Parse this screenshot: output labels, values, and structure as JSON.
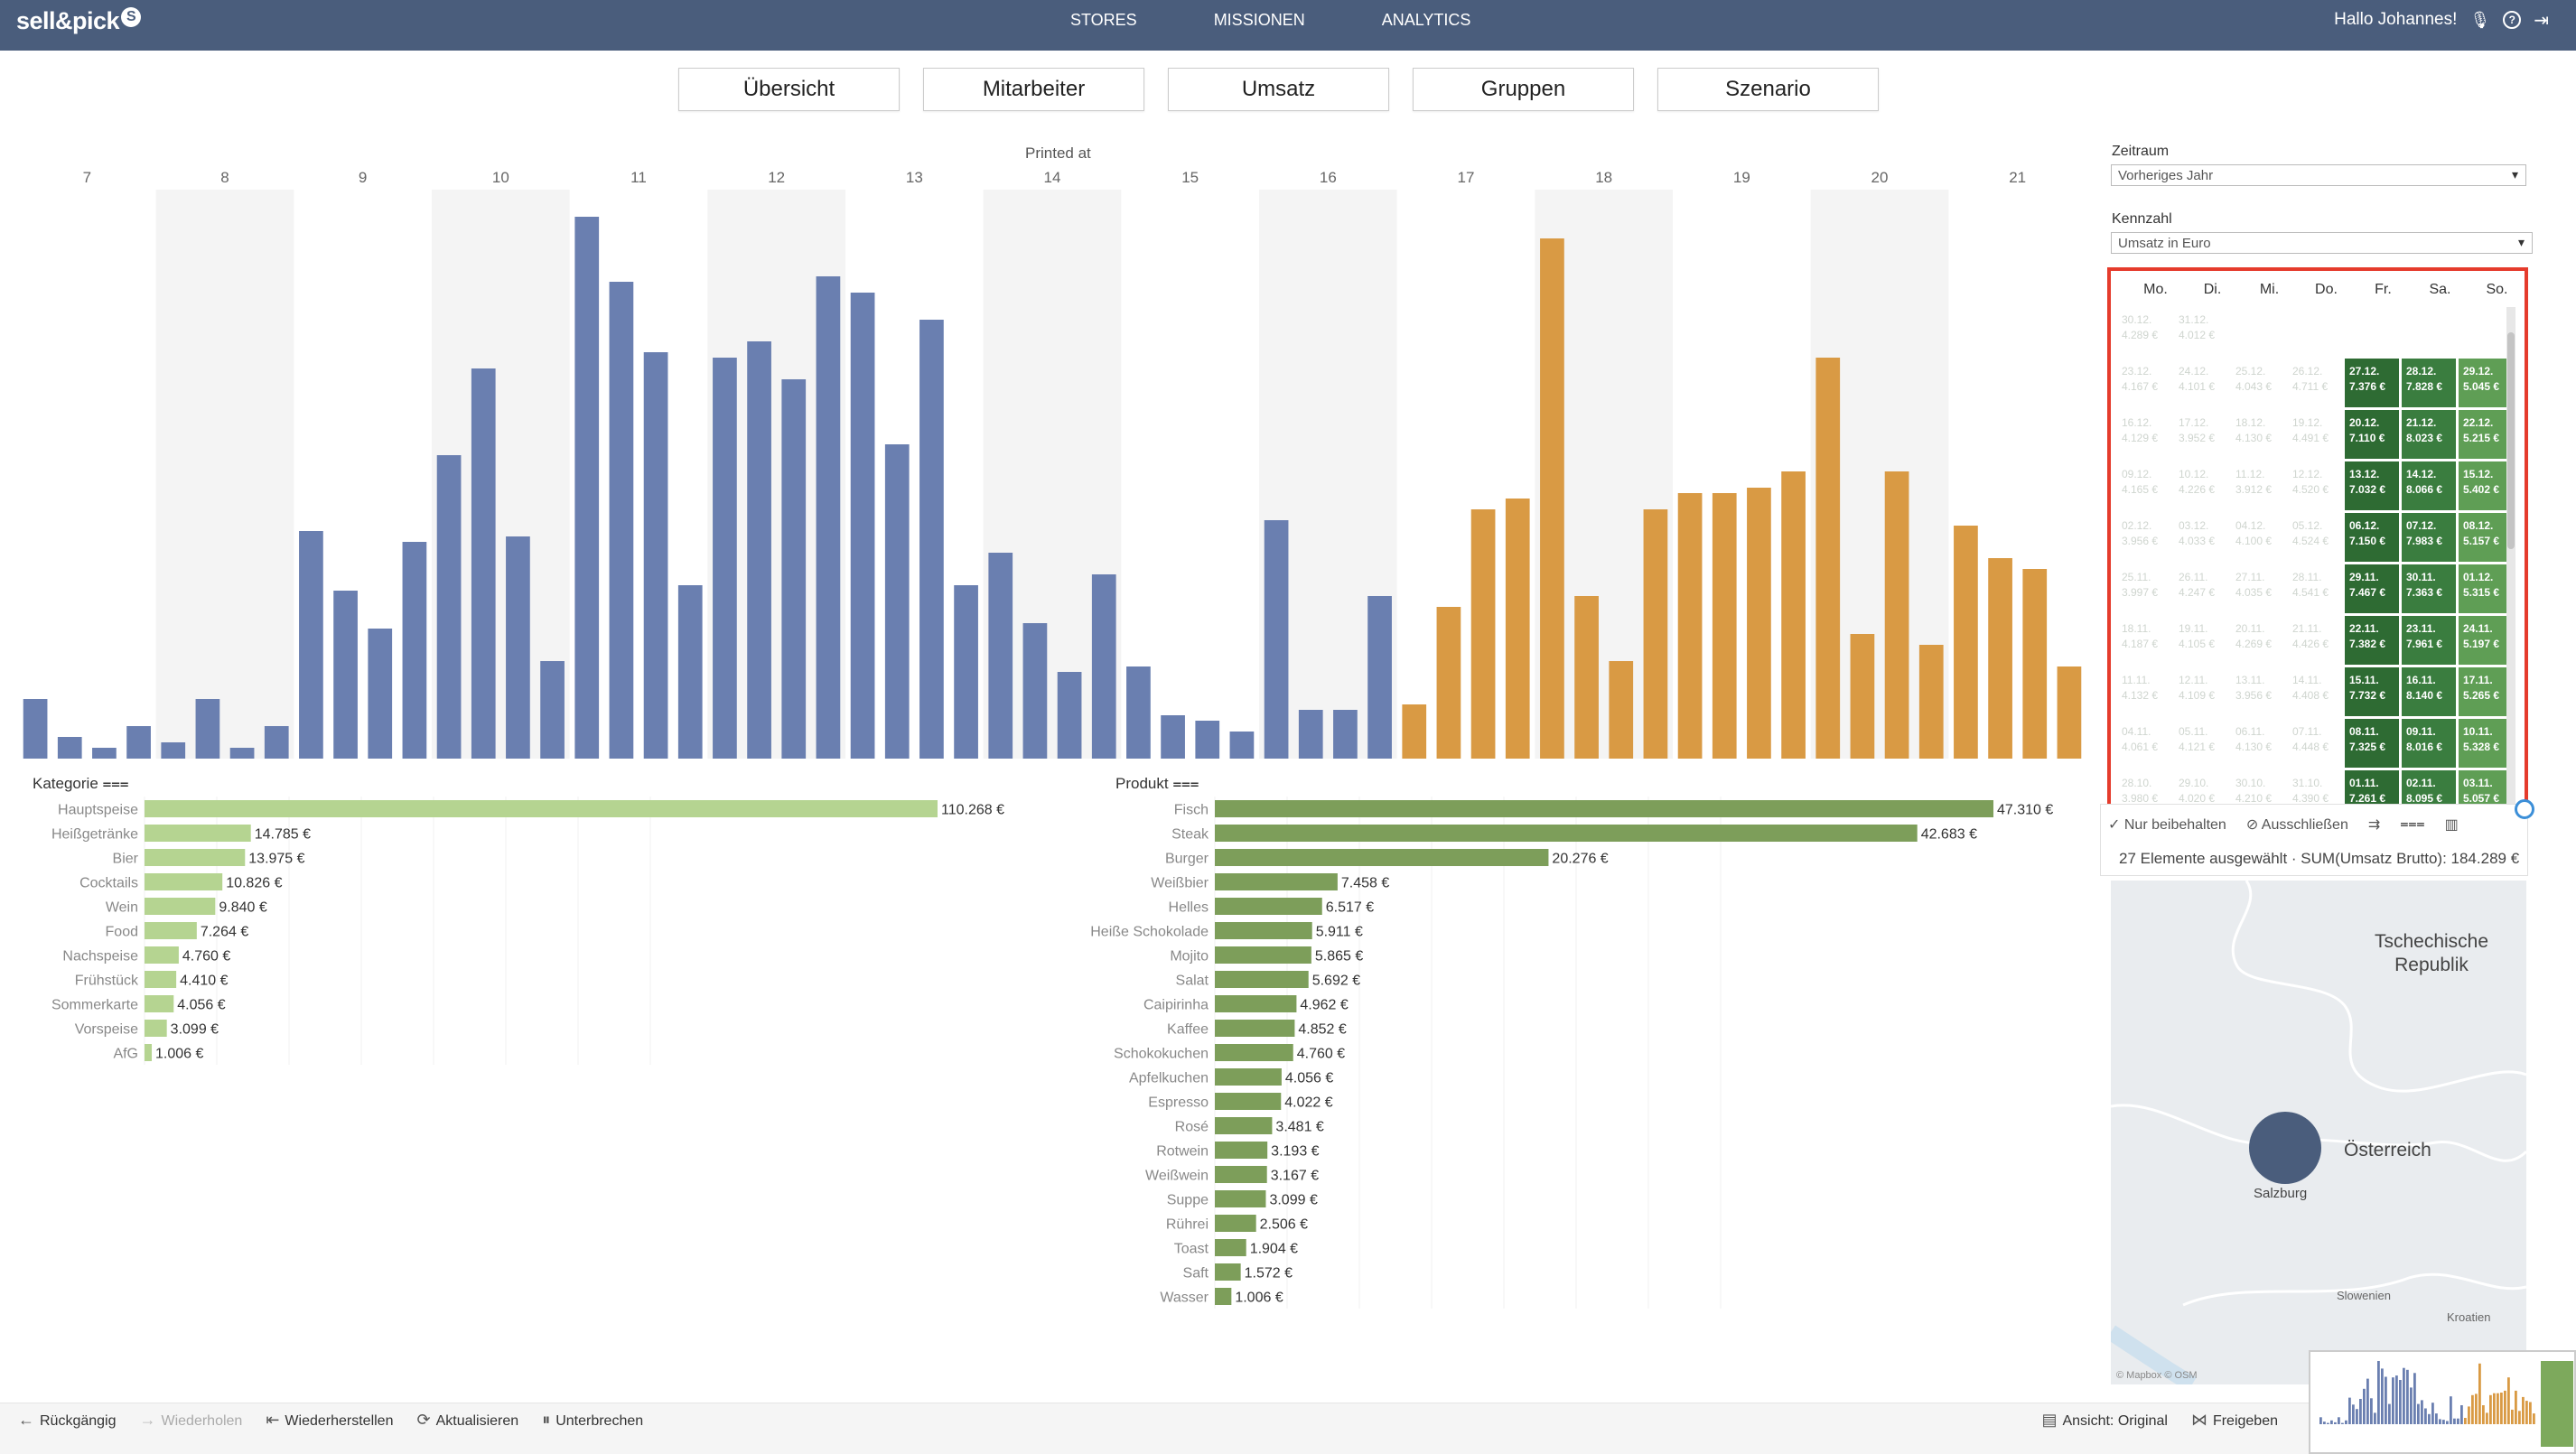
{
  "app": {
    "logo_text": "sell&pick",
    "logo_badge": "S"
  },
  "nav": {
    "items": [
      "STORES",
      "MISSIONEN",
      "ANALYTICS"
    ]
  },
  "user": {
    "greeting": "Hallo Johannes!"
  },
  "tabs": [
    "Übersicht",
    "Mitarbeiter",
    "Umsatz",
    "Gruppen",
    "Szenario"
  ],
  "colors": {
    "header": "#4a5d7c",
    "blue_bar": "#6a7fb0",
    "orange_bar": "#d99a44",
    "light_green": "#b5d491",
    "dark_green": "#7d9e5a",
    "selection": "#e53b2c"
  },
  "chart_data": [
    {
      "type": "bar",
      "title": "Printed at",
      "x_ticks": [
        "7",
        "8",
        "9",
        "10",
        "11",
        "12",
        "13",
        "14",
        "15",
        "16",
        "17",
        "18",
        "19",
        "20",
        "21"
      ],
      "band_ticks": [
        "8",
        "10",
        "12",
        "14",
        "16",
        "18",
        "20"
      ],
      "ylim": [
        0,
        100
      ],
      "values": [
        11,
        4,
        2,
        6,
        3,
        11,
        2,
        6,
        42,
        31,
        24,
        40,
        56,
        72,
        41,
        18,
        100,
        88,
        75,
        32,
        74,
        77,
        70,
        89,
        86,
        58,
        81,
        32,
        38,
        25,
        16,
        34,
        17,
        8,
        7,
        5,
        44,
        9,
        9,
        30,
        10,
        28,
        46,
        48,
        96,
        30,
        18,
        46,
        49,
        49,
        50,
        53,
        74,
        23,
        53,
        21,
        43,
        37,
        35,
        17
      ],
      "series_colors": [
        "#6a7fb0",
        "#6a7fb0",
        "#6a7fb0",
        "#6a7fb0",
        "#6a7fb0",
        "#6a7fb0",
        "#6a7fb0",
        "#6a7fb0",
        "#6a7fb0",
        "#6a7fb0",
        "#6a7fb0",
        "#6a7fb0",
        "#6a7fb0",
        "#6a7fb0",
        "#6a7fb0",
        "#6a7fb0",
        "#6a7fb0",
        "#6a7fb0",
        "#6a7fb0",
        "#6a7fb0",
        "#6a7fb0",
        "#6a7fb0",
        "#6a7fb0",
        "#6a7fb0",
        "#6a7fb0",
        "#6a7fb0",
        "#6a7fb0",
        "#6a7fb0",
        "#6a7fb0",
        "#6a7fb0",
        "#6a7fb0",
        "#6a7fb0",
        "#6a7fb0",
        "#6a7fb0",
        "#6a7fb0",
        "#6a7fb0",
        "#6a7fb0",
        "#6a7fb0",
        "#6a7fb0",
        "#6a7fb0",
        "#d99a44",
        "#d99a44",
        "#d99a44",
        "#d99a44",
        "#d99a44",
        "#d99a44",
        "#d99a44",
        "#d99a44",
        "#d99a44",
        "#d99a44",
        "#d99a44",
        "#d99a44",
        "#d99a44",
        "#d99a44",
        "#d99a44",
        "#d99a44",
        "#d99a44",
        "#d99a44",
        "#d99a44",
        "#d99a44"
      ]
    },
    {
      "type": "bar",
      "orientation": "horizontal",
      "header": "Kategorie",
      "categories": [
        "Hauptspeise",
        "Heißgetränke",
        "Bier",
        "Cocktails",
        "Wein",
        "Food",
        "Nachspeise",
        "Frühstück",
        "Sommerkarte",
        "Vorspeise",
        "AfG"
      ],
      "values": [
        110268,
        14785,
        13975,
        10826,
        9840,
        7264,
        4760,
        4410,
        4056,
        3099,
        1006
      ],
      "labels": [
        "110.268 €",
        "14.785 €",
        "13.975 €",
        "10.826 €",
        "9.840 €",
        "7.264 €",
        "4.760 €",
        "4.410 €",
        "4.056 €",
        "3.099 €",
        "1.006 €"
      ]
    },
    {
      "type": "bar",
      "orientation": "horizontal",
      "header": "Produkt",
      "categories": [
        "Fisch",
        "Steak",
        "Burger",
        "Weißbier",
        "Helles",
        "Heiße Schokolade",
        "Mojito",
        "Salat",
        "Caipirinha",
        "Kaffee",
        "Schokokuchen",
        "Apfelkuchen",
        "Espresso",
        "Rosé",
        "Rotwein",
        "Weißwein",
        "Suppe",
        "Rührei",
        "Toast",
        "Saft",
        "Wasser"
      ],
      "values": [
        47310,
        42683,
        20276,
        7458,
        6517,
        5911,
        5865,
        5692,
        4962,
        4852,
        4760,
        4056,
        4022,
        3481,
        3193,
        3167,
        3099,
        2506,
        1904,
        1572,
        1006
      ],
      "labels": [
        "47.310 €",
        "42.683 €",
        "20.276 €",
        "7.458 €",
        "6.517 €",
        "5.911 €",
        "5.865 €",
        "5.692 €",
        "4.962 €",
        "4.852 €",
        "4.760 €",
        "4.056 €",
        "4.022 €",
        "3.481 €",
        "3.193 €",
        "3.167 €",
        "3.099 €",
        "2.506 €",
        "1.904 €",
        "1.572 €",
        "1.006 €"
      ]
    }
  ],
  "filters": {
    "zeitraum_label": "Zeitraum",
    "zeitraum_value": "Vorheriges Jahr",
    "kennzahl_label": "Kennzahl",
    "kennzahl_value": "Umsatz in Euro"
  },
  "calendar": {
    "weekdays": [
      "Mo.",
      "Di.",
      "Mi.",
      "Do.",
      "Fr.",
      "Sa.",
      "So."
    ],
    "rows": [
      [
        {
          "d": "30.12.",
          "v": "4.289 €"
        },
        {
          "d": "31.12.",
          "v": "4.012 €"
        },
        null,
        null,
        null,
        null,
        null
      ],
      [
        {
          "d": "23.12.",
          "v": "4.167 €"
        },
        {
          "d": "24.12.",
          "v": "4.101 €"
        },
        {
          "d": "25.12.",
          "v": "4.043 €"
        },
        {
          "d": "26.12.",
          "v": "4.711 €"
        },
        {
          "d": "27.12.",
          "v": "7.376 €",
          "s": 1
        },
        {
          "d": "28.12.",
          "v": "7.828 €",
          "s": 1
        },
        {
          "d": "29.12.",
          "v": "5.045 €",
          "s": 1
        }
      ],
      [
        {
          "d": "16.12.",
          "v": "4.129 €"
        },
        {
          "d": "17.12.",
          "v": "3.952 €"
        },
        {
          "d": "18.12.",
          "v": "4.130 €"
        },
        {
          "d": "19.12.",
          "v": "4.491 €"
        },
        {
          "d": "20.12.",
          "v": "7.110 €",
          "s": 1
        },
        {
          "d": "21.12.",
          "v": "8.023 €",
          "s": 1
        },
        {
          "d": "22.12.",
          "v": "5.215 €",
          "s": 1
        }
      ],
      [
        {
          "d": "09.12.",
          "v": "4.165 €"
        },
        {
          "d": "10.12.",
          "v": "4.226 €"
        },
        {
          "d": "11.12.",
          "v": "3.912 €"
        },
        {
          "d": "12.12.",
          "v": "4.520 €"
        },
        {
          "d": "13.12.",
          "v": "7.032 €",
          "s": 1
        },
        {
          "d": "14.12.",
          "v": "8.066 €",
          "s": 1
        },
        {
          "d": "15.12.",
          "v": "5.402 €",
          "s": 1
        }
      ],
      [
        {
          "d": "02.12.",
          "v": "3.956 €"
        },
        {
          "d": "03.12.",
          "v": "4.033 €"
        },
        {
          "d": "04.12.",
          "v": "4.100 €"
        },
        {
          "d": "05.12.",
          "v": "4.524 €"
        },
        {
          "d": "06.12.",
          "v": "7.150 €",
          "s": 1
        },
        {
          "d": "07.12.",
          "v": "7.983 €",
          "s": 1
        },
        {
          "d": "08.12.",
          "v": "5.157 €",
          "s": 1
        }
      ],
      [
        {
          "d": "25.11.",
          "v": "3.997 €"
        },
        {
          "d": "26.11.",
          "v": "4.247 €"
        },
        {
          "d": "27.11.",
          "v": "4.035 €"
        },
        {
          "d": "28.11.",
          "v": "4.541 €"
        },
        {
          "d": "29.11.",
          "v": "7.467 €",
          "s": 1
        },
        {
          "d": "30.11.",
          "v": "7.363 €",
          "s": 1
        },
        {
          "d": "01.12.",
          "v": "5.315 €",
          "s": 1
        }
      ],
      [
        {
          "d": "18.11.",
          "v": "4.187 €"
        },
        {
          "d": "19.11.",
          "v": "4.105 €"
        },
        {
          "d": "20.11.",
          "v": "4.269 €"
        },
        {
          "d": "21.11.",
          "v": "4.426 €"
        },
        {
          "d": "22.11.",
          "v": "7.382 €",
          "s": 1
        },
        {
          "d": "23.11.",
          "v": "7.961 €",
          "s": 1
        },
        {
          "d": "24.11.",
          "v": "5.197 €",
          "s": 1
        }
      ],
      [
        {
          "d": "11.11.",
          "v": "4.132 €"
        },
        {
          "d": "12.11.",
          "v": "4.109 €"
        },
        {
          "d": "13.11.",
          "v": "3.956 €"
        },
        {
          "d": "14.11.",
          "v": "4.408 €"
        },
        {
          "d": "15.11.",
          "v": "7.732 €",
          "s": 1
        },
        {
          "d": "16.11.",
          "v": "8.140 €",
          "s": 1
        },
        {
          "d": "17.11.",
          "v": "5.265 €",
          "s": 1
        }
      ],
      [
        {
          "d": "04.11.",
          "v": "4.061 €"
        },
        {
          "d": "05.11.",
          "v": "4.121 €"
        },
        {
          "d": "06.11.",
          "v": "4.130 €"
        },
        {
          "d": "07.11.",
          "v": "4.448 €"
        },
        {
          "d": "08.11.",
          "v": "7.325 €",
          "s": 1
        },
        {
          "d": "09.11.",
          "v": "8.016 €",
          "s": 1
        },
        {
          "d": "10.11.",
          "v": "5.328 €",
          "s": 1
        }
      ],
      [
        {
          "d": "28.10.",
          "v": "3.980 €"
        },
        {
          "d": "29.10.",
          "v": "4.020 €"
        },
        {
          "d": "30.10.",
          "v": "4.210 €"
        },
        {
          "d": "31.10.",
          "v": "4.390 €"
        },
        {
          "d": "01.11.",
          "v": "7.261 €",
          "s": 1
        },
        {
          "d": "02.11.",
          "v": "8.095 €",
          "s": 1
        },
        {
          "d": "03.11.",
          "v": "5.057 €",
          "s": 1
        }
      ]
    ]
  },
  "tooltip": {
    "keep_only": "Nur beibehalten",
    "exclude": "Ausschließen",
    "summary": "27 Elemente ausgewählt · SUM(Umsatz Brutto): 184.289 €"
  },
  "map": {
    "labels": {
      "czech": "Tschechische Republik",
      "austria": "Österreich",
      "salzburg": "Salzburg",
      "slovenia": "Slowenien",
      "croatia": "Kroatien"
    },
    "attribution": "© Mapbox © OSM"
  },
  "toolbar": {
    "undo": "Rückgängig",
    "redo": "Wiederholen",
    "revert": "Wiederherstellen",
    "refresh": "Aktualisieren",
    "pause": "Unterbrechen",
    "view": "Ansicht: Original",
    "share": "Freigeben"
  }
}
